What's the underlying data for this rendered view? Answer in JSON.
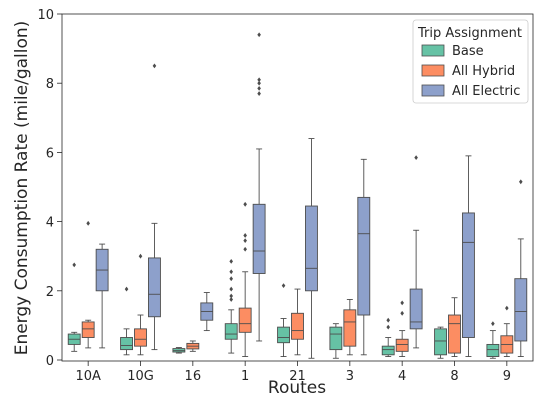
{
  "chart_data": {
    "type": "box",
    "title": "",
    "xlabel": "Routes",
    "ylabel": "Energy Consumption Rate (mile/gallon)",
    "ylim": [
      0,
      10
    ],
    "yticks": [
      "0",
      "2",
      "4",
      "6",
      "8",
      "10"
    ],
    "grid": false,
    "categories": [
      "10A",
      "10G",
      "16",
      "1",
      "21",
      "3",
      "4",
      "8",
      "9"
    ],
    "legend": {
      "title": "Trip Assignment",
      "placement": "top-right"
    },
    "series": [
      {
        "name": "Base",
        "color": "#66c2a5",
        "boxes": [
          {
            "whislo": 0.25,
            "q1": 0.45,
            "med": 0.6,
            "q3": 0.75,
            "whishi": 0.8,
            "fliers": [
              2.75
            ]
          },
          {
            "whislo": 0.15,
            "q1": 0.3,
            "med": 0.42,
            "q3": 0.65,
            "whishi": 0.9,
            "fliers": [
              2.05
            ]
          },
          {
            "whislo": 0.2,
            "q1": 0.23,
            "med": 0.27,
            "q3": 0.33,
            "whishi": 0.36,
            "fliers": []
          },
          {
            "whislo": 0.2,
            "q1": 0.6,
            "med": 0.75,
            "q3": 1.05,
            "whishi": 1.45,
            "fliers": [
              1.75,
              1.85,
              2.05,
              2.35,
              2.55,
              2.85
            ]
          },
          {
            "whislo": 0.1,
            "q1": 0.5,
            "med": 0.65,
            "q3": 0.95,
            "whishi": 1.2,
            "fliers": [
              2.15
            ]
          },
          {
            "whislo": 0.05,
            "q1": 0.3,
            "med": 0.75,
            "q3": 0.95,
            "whishi": 1.05,
            "fliers": []
          },
          {
            "whislo": 0.1,
            "q1": 0.15,
            "med": 0.3,
            "q3": 0.4,
            "whishi": 0.65,
            "fliers": [
              0.95,
              1.15
            ]
          },
          {
            "whislo": 0.05,
            "q1": 0.15,
            "med": 0.55,
            "q3": 0.9,
            "whishi": 0.95,
            "fliers": []
          },
          {
            "whislo": 0.05,
            "q1": 0.1,
            "med": 0.3,
            "q3": 0.45,
            "whishi": 0.85,
            "fliers": [
              1.05
            ]
          }
        ]
      },
      {
        "name": "All Hybrid",
        "color": "#fc8d62",
        "boxes": [
          {
            "whislo": 0.35,
            "q1": 0.65,
            "med": 0.9,
            "q3": 1.1,
            "whishi": 1.15,
            "fliers": [
              3.95
            ]
          },
          {
            "whislo": 0.15,
            "q1": 0.4,
            "med": 0.6,
            "q3": 0.9,
            "whishi": 1.3,
            "fliers": [
              3.0
            ]
          },
          {
            "whislo": 0.25,
            "q1": 0.32,
            "med": 0.4,
            "q3": 0.48,
            "whishi": 0.55,
            "fliers": []
          },
          {
            "whislo": 0.1,
            "q1": 0.8,
            "med": 1.05,
            "q3": 1.5,
            "whishi": 2.55,
            "fliers": [
              3.2,
              3.45,
              3.6,
              4.5
            ]
          },
          {
            "whislo": 0.15,
            "q1": 0.6,
            "med": 0.85,
            "q3": 1.35,
            "whishi": 2.05,
            "fliers": []
          },
          {
            "whislo": 0.15,
            "q1": 0.4,
            "med": 1.1,
            "q3": 1.45,
            "whishi": 1.75,
            "fliers": []
          },
          {
            "whislo": 0.1,
            "q1": 0.25,
            "med": 0.45,
            "q3": 0.6,
            "whishi": 0.85,
            "fliers": [
              1.35,
              1.65
            ]
          },
          {
            "whislo": 0.1,
            "q1": 0.2,
            "med": 1.05,
            "q3": 1.3,
            "whishi": 1.8,
            "fliers": []
          },
          {
            "whislo": 0.1,
            "q1": 0.2,
            "med": 0.45,
            "q3": 0.7,
            "whishi": 1.05,
            "fliers": [
              1.5
            ]
          }
        ]
      },
      {
        "name": "All Electric",
        "color": "#8da0cb",
        "boxes": [
          {
            "whislo": 0.35,
            "q1": 2.0,
            "med": 2.6,
            "q3": 3.2,
            "whishi": 3.35,
            "fliers": []
          },
          {
            "whislo": 0.3,
            "q1": 1.25,
            "med": 1.9,
            "q3": 2.95,
            "whishi": 3.95,
            "fliers": [
              8.5
            ]
          },
          {
            "whislo": 0.85,
            "q1": 1.15,
            "med": 1.4,
            "q3": 1.65,
            "whishi": 1.95,
            "fliers": []
          },
          {
            "whislo": 0.55,
            "q1": 2.5,
            "med": 3.15,
            "q3": 4.5,
            "whishi": 6.1,
            "fliers": [
              7.7,
              7.85,
              8.0,
              8.1,
              9.4
            ]
          },
          {
            "whislo": 0.05,
            "q1": 2.0,
            "med": 2.65,
            "q3": 4.45,
            "whishi": 6.4,
            "fliers": []
          },
          {
            "whislo": 0.15,
            "q1": 1.3,
            "med": 3.65,
            "q3": 4.7,
            "whishi": 5.8,
            "fliers": []
          },
          {
            "whislo": 0.35,
            "q1": 0.9,
            "med": 1.1,
            "q3": 2.05,
            "whishi": 3.75,
            "fliers": [
              5.85
            ]
          },
          {
            "whislo": 0.1,
            "q1": 0.65,
            "med": 3.4,
            "q3": 4.25,
            "whishi": 5.9,
            "fliers": []
          },
          {
            "whislo": 0.1,
            "q1": 0.55,
            "med": 1.4,
            "q3": 2.35,
            "whishi": 3.5,
            "fliers": [
              5.15
            ]
          }
        ]
      }
    ]
  }
}
